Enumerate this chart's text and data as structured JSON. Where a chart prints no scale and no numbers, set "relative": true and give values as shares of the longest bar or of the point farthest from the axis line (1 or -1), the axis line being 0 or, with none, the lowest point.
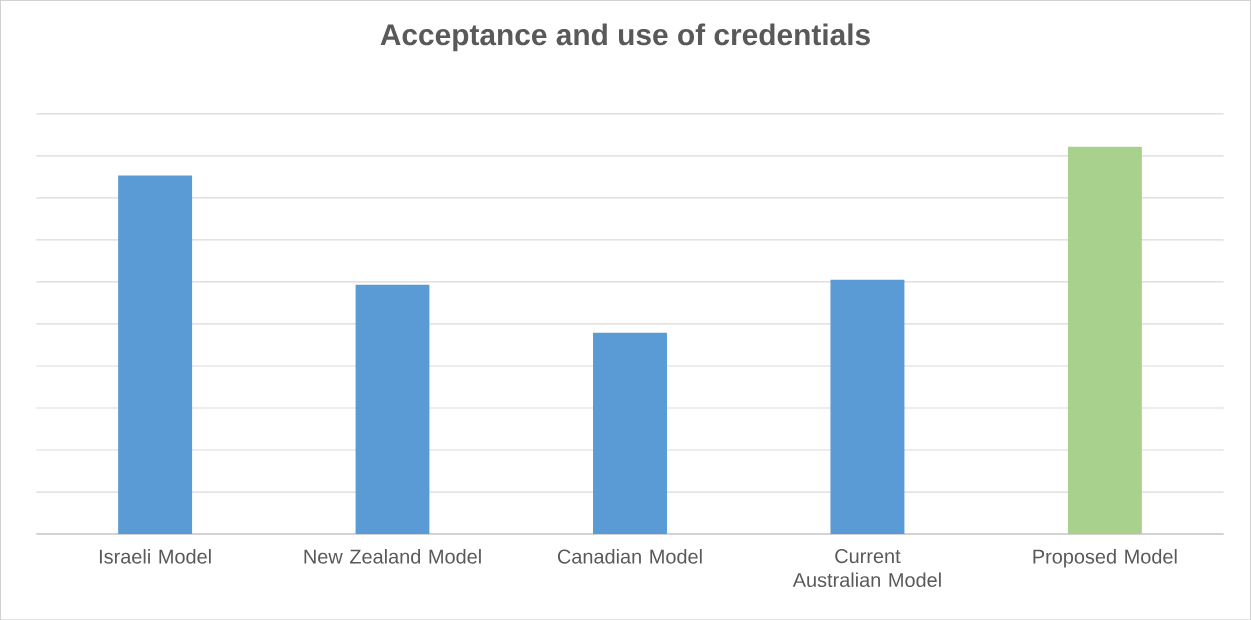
{
  "chart_data": {
    "type": "bar",
    "title": "Acceptance and use of credentials",
    "categories": [
      "Israeli Model",
      "New Zealand Model",
      "Canadian Model",
      "Current Australian Model",
      "Proposed Model"
    ],
    "values": [
      0.926,
      0.644,
      0.52,
      0.657,
      1
    ],
    "colors": [
      "#5b9bd5",
      "#5b9bd5",
      "#5b9bd5",
      "#5b9bd5",
      "#a9d18e"
    ],
    "relative": true,
    "grid": "y"
  }
}
